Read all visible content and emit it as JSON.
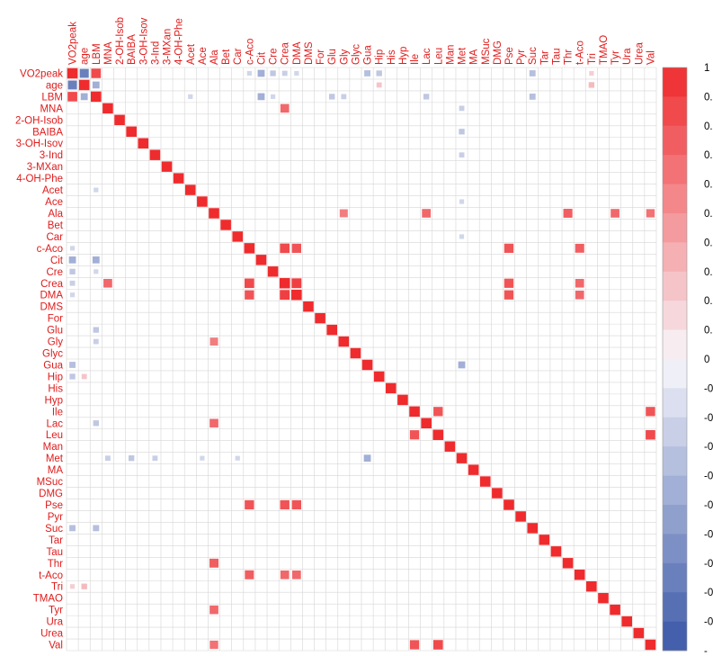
{
  "chart_data": {
    "type": "heatmap",
    "title": "",
    "xlabel": "",
    "ylabel": "",
    "method": "square",
    "variables": [
      "VO2peak",
      "age",
      "LBM",
      "MNA",
      "2-OH-Isob",
      "BAIBA",
      "3-OH-Isov",
      "3-Ind",
      "3-MXan",
      "4-OH-Phe",
      "Acet",
      "Ace",
      "Ala",
      "Bet",
      "Car",
      "c-Aco",
      "Cit",
      "Cre",
      "Crea",
      "DMA",
      "DMS",
      "For",
      "Glu",
      "Gly",
      "Glyc",
      "Gua",
      "Hip",
      "His",
      "Hyp",
      "Ile",
      "Lac",
      "Leu",
      "Man",
      "Met",
      "MA",
      "MSuc",
      "DMG",
      "Pse",
      "Pyr",
      "Suc",
      "Tar",
      "Tau",
      "Thr",
      "t-Aco",
      "Tri",
      "TMAO",
      "Tyr",
      "Ura",
      "Urea",
      "Val"
    ],
    "color_scale": {
      "min": -1,
      "max": 1,
      "low_color": "#3b58a8",
      "mid_color": "#f7f7fb",
      "high_color": "#ef2b2d",
      "label_color": "#e01b1b",
      "tick_labels": [
        "1",
        "0.",
        "0.",
        "0.",
        "0.",
        "0.",
        "0.",
        "0.",
        "0.",
        "0.",
        "0",
        "-0",
        "-0",
        "-0",
        "-0",
        "-0",
        "-0",
        "-0",
        "-0",
        "-0",
        "-"
      ]
    },
    "correlations": [
      {
        "row": "VO2peak",
        "col": "age",
        "r": -0.75
      },
      {
        "row": "VO2peak",
        "col": "LBM",
        "r": 0.85
      },
      {
        "row": "VO2peak",
        "col": "c-Aco",
        "r": -0.2
      },
      {
        "row": "VO2peak",
        "col": "Cit",
        "r": -0.45
      },
      {
        "row": "VO2peak",
        "col": "Cre",
        "r": -0.3
      },
      {
        "row": "VO2peak",
        "col": "Crea",
        "r": -0.25
      },
      {
        "row": "VO2peak",
        "col": "DMA",
        "r": -0.2
      },
      {
        "row": "VO2peak",
        "col": "Gua",
        "r": -0.35
      },
      {
        "row": "VO2peak",
        "col": "Hip",
        "r": -0.3
      },
      {
        "row": "VO2peak",
        "col": "Suc",
        "r": -0.35
      },
      {
        "row": "VO2peak",
        "col": "Tri",
        "r": 0.2
      },
      {
        "row": "age",
        "col": "LBM",
        "r": -0.45
      },
      {
        "row": "age",
        "col": "Tri",
        "r": 0.3
      },
      {
        "row": "age",
        "col": "Hip",
        "r": 0.25
      },
      {
        "row": "LBM",
        "col": "Cit",
        "r": -0.45
      },
      {
        "row": "LBM",
        "col": "Cre",
        "r": -0.2
      },
      {
        "row": "LBM",
        "col": "Glu",
        "r": -0.3
      },
      {
        "row": "LBM",
        "col": "Gly",
        "r": -0.25
      },
      {
        "row": "LBM",
        "col": "Lac",
        "r": -0.3
      },
      {
        "row": "LBM",
        "col": "Suc",
        "r": -0.35
      },
      {
        "row": "LBM",
        "col": "Acet",
        "r": -0.2
      },
      {
        "row": "Met",
        "col": "MNA",
        "r": -0.25
      },
      {
        "row": "Met",
        "col": "BAIBA",
        "r": -0.3
      },
      {
        "row": "Met",
        "col": "3-Ind",
        "r": -0.25
      },
      {
        "row": "Met",
        "col": "Car",
        "r": -0.2
      },
      {
        "row": "Met",
        "col": "Gua",
        "r": -0.45
      },
      {
        "row": "Met",
        "col": "Ace",
        "r": -0.2
      },
      {
        "row": "Tyr",
        "col": "Ala",
        "r": 0.7
      },
      {
        "row": "Thr",
        "col": "Ala",
        "r": 0.75
      },
      {
        "row": "Val",
        "col": "Leu",
        "r": 0.85
      },
      {
        "row": "Val",
        "col": "Ile",
        "r": 0.8
      },
      {
        "row": "Val",
        "col": "Ala",
        "r": 0.65
      },
      {
        "row": "Crea",
        "col": "MNA",
        "r": 0.7
      },
      {
        "row": "Crea",
        "col": "DMA",
        "r": 0.9
      },
      {
        "row": "Crea",
        "col": "c-Aco",
        "r": 0.85
      },
      {
        "row": "DMA",
        "col": "c-Aco",
        "r": 0.8
      },
      {
        "row": "Pse",
        "col": "c-Aco",
        "r": 0.8
      },
      {
        "row": "Pse",
        "col": "Crea",
        "r": 0.8
      },
      {
        "row": "Pse",
        "col": "DMA",
        "r": 0.8
      },
      {
        "row": "t-Aco",
        "col": "c-Aco",
        "r": 0.75
      },
      {
        "row": "t-Aco",
        "col": "Crea",
        "r": 0.7
      },
      {
        "row": "t-Aco",
        "col": "DMA",
        "r": 0.7
      },
      {
        "row": "Leu",
        "col": "Ile",
        "r": 0.8
      },
      {
        "row": "Lac",
        "col": "Ala",
        "r": 0.7
      },
      {
        "row": "Ala",
        "col": "Gly",
        "r": 0.6
      }
    ],
    "grid": true,
    "legend": "right"
  }
}
